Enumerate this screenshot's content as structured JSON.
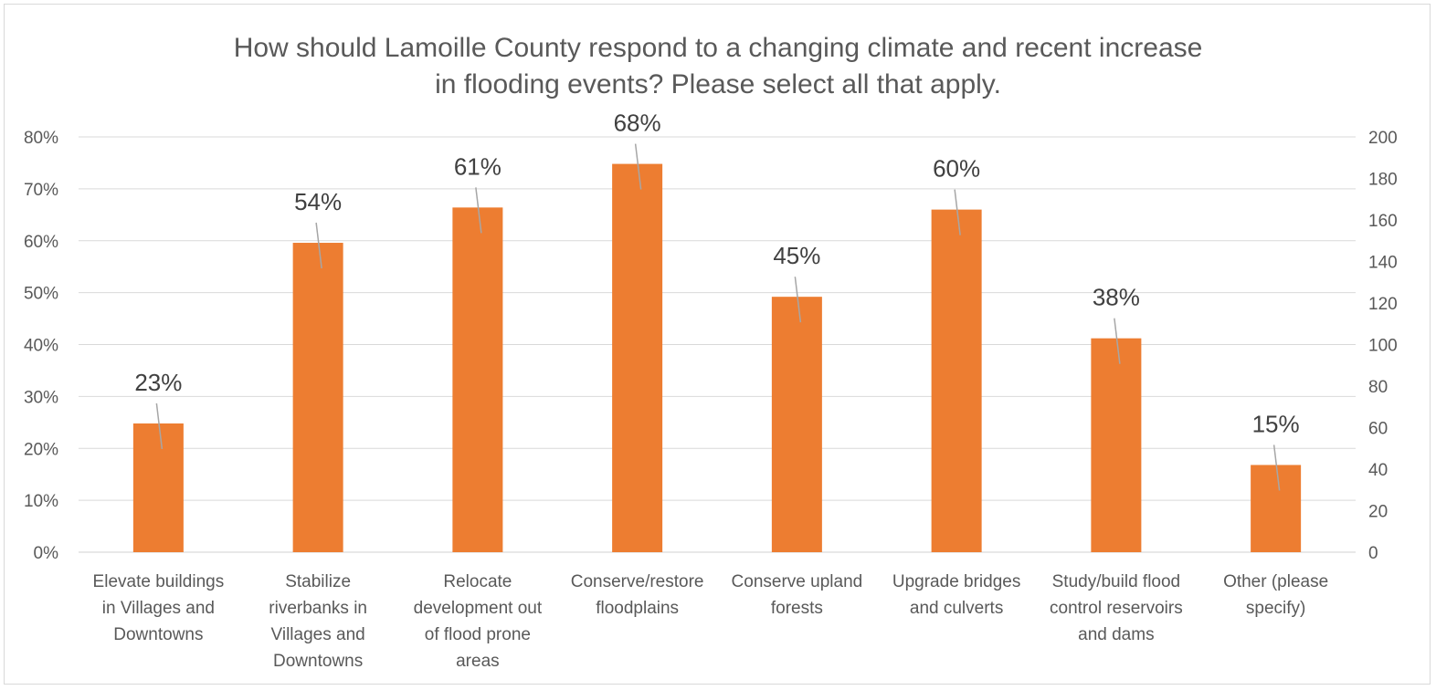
{
  "chart_data": {
    "type": "bar",
    "title": [
      "How should Lamoille County respond to a changing climate and recent increase",
      "in flooding events? Please select all that apply."
    ],
    "categories": [
      [
        "Elevate buildings",
        "in Villages and",
        "Downtowns"
      ],
      [
        "Stabilize",
        "riverbanks in",
        "Villages and",
        "Downtowns"
      ],
      [
        "Relocate",
        "development out",
        "of flood prone",
        "areas"
      ],
      [
        "Conserve/restore",
        "floodplains"
      ],
      [
        "Conserve upland",
        "forests"
      ],
      [
        "Upgrade bridges",
        "and culverts"
      ],
      [
        "Study/build flood",
        "control reservoirs",
        "and dams"
      ],
      [
        "Other (please",
        "specify)"
      ]
    ],
    "values": [
      62,
      149,
      166,
      187,
      123,
      165,
      103,
      42
    ],
    "data_labels": [
      "23%",
      "54%",
      "61%",
      "68%",
      "45%",
      "60%",
      "38%",
      "15%"
    ],
    "y_left": {
      "ticks": [
        "0%",
        "10%",
        "20%",
        "30%",
        "40%",
        "50%",
        "60%",
        "70%",
        "80%"
      ],
      "range": [
        0,
        0.8
      ]
    },
    "y_right": {
      "ticks": [
        "0",
        "20",
        "40",
        "60",
        "80",
        "100",
        "120",
        "140",
        "160",
        "180",
        "200"
      ],
      "range": [
        0,
        200
      ]
    },
    "bar_axis": "right",
    "grid": true,
    "colors": {
      "bar": "#ed7d31",
      "grid": "#d9d9d9",
      "leader": "#a6a6a6",
      "text": "#595959"
    }
  }
}
